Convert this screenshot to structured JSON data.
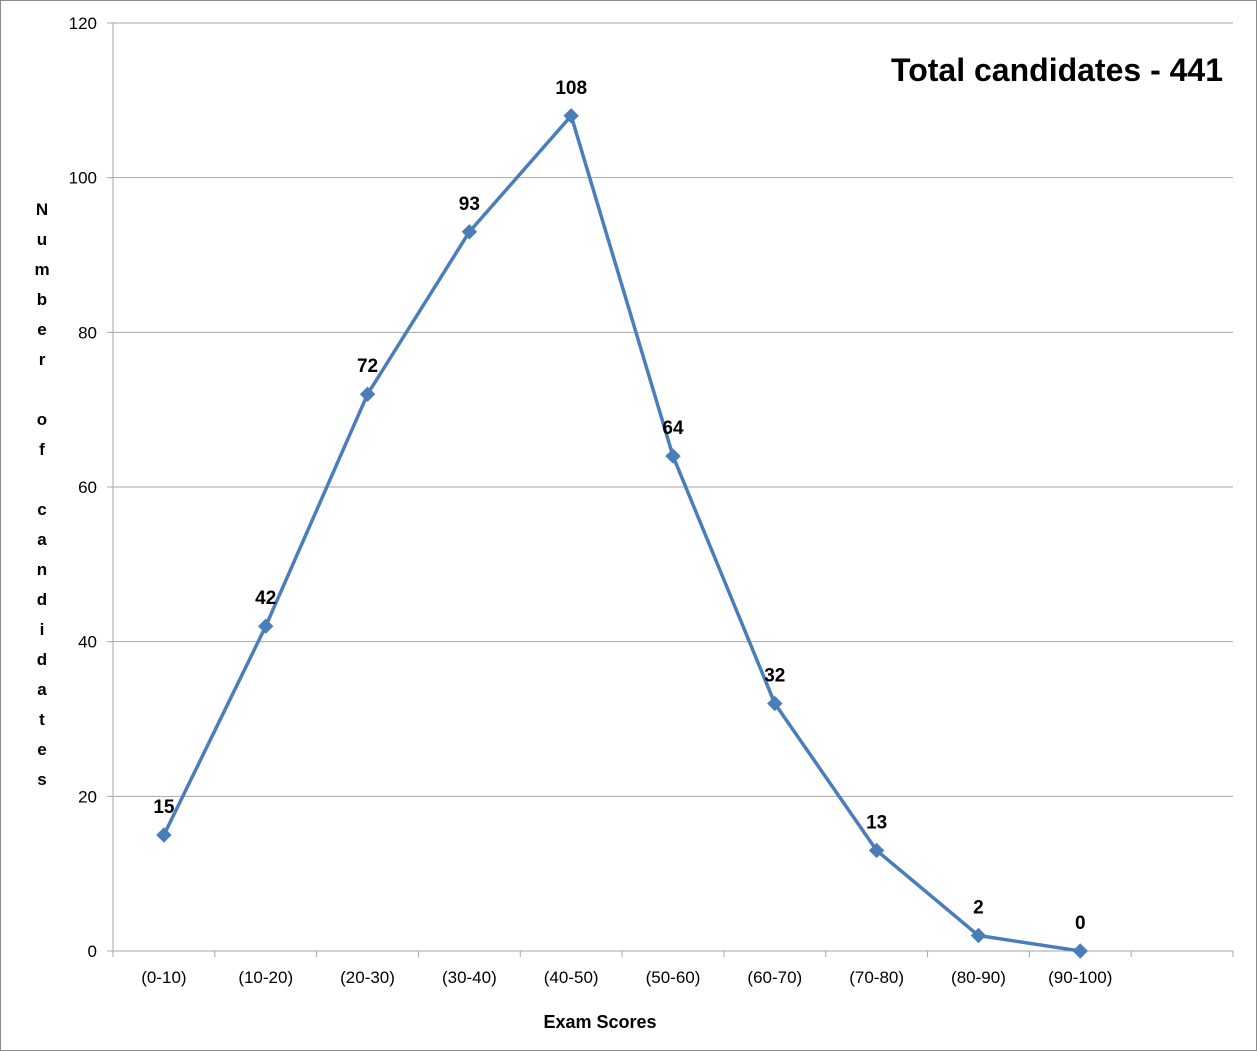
{
  "chart_data": {
    "type": "line",
    "categories": [
      "(0-10)",
      "(10-20)",
      "(20-30)",
      "(30-40)",
      "(40-50)",
      "(50-60)",
      "(60-70)",
      "(70-80)",
      "(80-90)",
      "(90-100)"
    ],
    "series": [
      {
        "values": [
          15,
          42,
          72,
          93,
          108,
          64,
          32,
          13,
          2,
          0
        ]
      }
    ],
    "xlabel": "Exam Scores",
    "ylabel": "Number of candidates",
    "ylim": [
      0,
      120
    ],
    "yticks": [
      0,
      20,
      40,
      60,
      80,
      100,
      120
    ],
    "grid": true,
    "data_labels": true,
    "annotation": "Total candidates - 441",
    "colors": {
      "series": "#4a7ebb",
      "grid": "#a6a6a6"
    }
  }
}
